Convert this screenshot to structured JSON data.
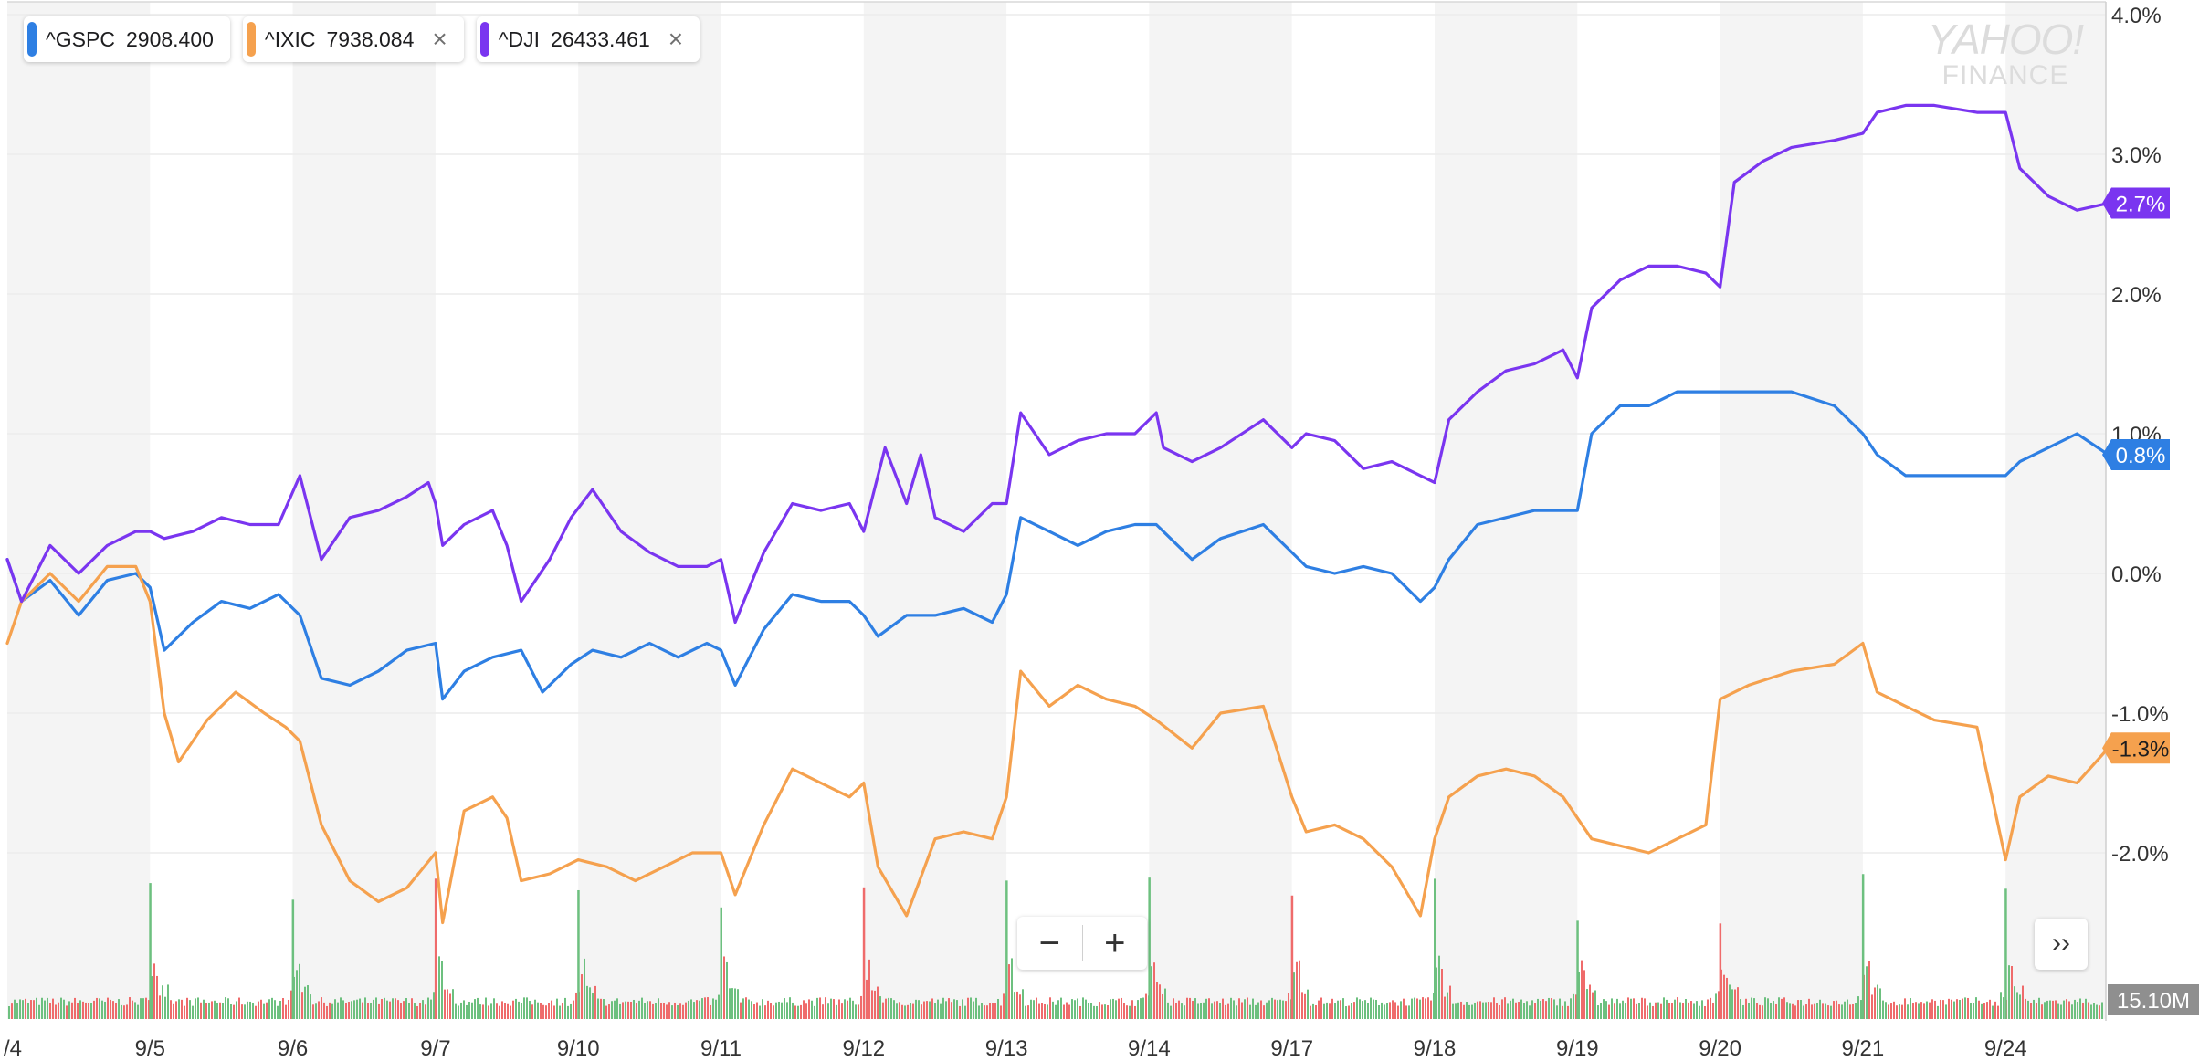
{
  "logo": {
    "line1": "YAHOO!",
    "line2": "FINANCE"
  },
  "legend": [
    {
      "symbol": "^GSPC",
      "value": "2908.400",
      "color": "#2e7fe3",
      "removable": false
    },
    {
      "symbol": "^IXIC",
      "value": "7938.084",
      "color": "#f5a14e",
      "removable": true
    },
    {
      "symbol": "^DJI",
      "value": "26433.461",
      "color": "#7a35f0",
      "removable": true
    }
  ],
  "controls": {
    "zoom_out": "−",
    "zoom_in": "+",
    "more": "››",
    "close": "×"
  },
  "colors": {
    "band": "#f4f4f4",
    "grid": "#ececec",
    "axis_text": "#333333",
    "vol_up": "#6dc07f",
    "vol_down": "#ef6b6b",
    "vol_badge": "#8f8f8f"
  },
  "chart_data": {
    "type": "line",
    "title": "",
    "xlabel": "",
    "ylabel": "",
    "ylim": [
      -3.0,
      4.0
    ],
    "y_ticks": [
      "4.0%",
      "3.0%",
      "2.0%",
      "1.0%",
      "0.0%",
      "-1.0%",
      "-2.0%"
    ],
    "y_tick_values": [
      4,
      3,
      2,
      1,
      0,
      -1,
      -2
    ],
    "x_first_label": "/4",
    "x_labels": [
      "9/5",
      "9/6",
      "9/7",
      "9/10",
      "9/11",
      "9/12",
      "9/13",
      "9/14",
      "9/17",
      "9/18",
      "9/19",
      "9/20",
      "9/21",
      "9/24"
    ],
    "x_day_index": [
      1,
      2,
      3,
      4,
      5,
      6,
      7,
      8,
      9,
      10,
      11,
      12,
      13,
      14
    ],
    "x_range": [
      0,
      14.72
    ],
    "grid": true,
    "volume_label": "15.10M",
    "series": [
      {
        "name": "^GSPC",
        "color": "#2e7fe3",
        "end_label": "0.8%",
        "x": [
          0,
          0.1,
          0.3,
          0.5,
          0.7,
          0.9,
          1.0,
          1.1,
          1.3,
          1.5,
          1.7,
          1.9,
          2.05,
          2.2,
          2.4,
          2.6,
          2.8,
          3.0,
          3.05,
          3.2,
          3.4,
          3.6,
          3.75,
          3.95,
          4.1,
          4.3,
          4.5,
          4.7,
          4.9,
          5.0,
          5.1,
          5.3,
          5.5,
          5.7,
          5.9,
          6.0,
          6.1,
          6.3,
          6.5,
          6.7,
          6.9,
          7.0,
          7.1,
          7.3,
          7.5,
          7.7,
          7.9,
          8.05,
          8.3,
          8.5,
          8.8,
          9.0,
          9.1,
          9.3,
          9.5,
          9.7,
          9.9,
          10.0,
          10.1,
          10.3,
          10.5,
          10.7,
          10.9,
          11.0,
          11.1,
          11.3,
          11.5,
          11.7,
          11.9,
          12.0,
          12.2,
          12.5,
          12.8,
          13.0,
          13.1,
          13.3,
          13.5,
          13.8,
          14.0,
          14.1,
          14.3,
          14.5,
          14.72
        ],
        "y": [
          0.1,
          -0.2,
          -0.05,
          -0.3,
          -0.05,
          0.0,
          -0.1,
          -0.55,
          -0.35,
          -0.2,
          -0.25,
          -0.15,
          -0.3,
          -0.75,
          -0.8,
          -0.7,
          -0.55,
          -0.5,
          -0.9,
          -0.7,
          -0.6,
          -0.55,
          -0.85,
          -0.65,
          -0.55,
          -0.6,
          -0.5,
          -0.6,
          -0.5,
          -0.55,
          -0.8,
          -0.4,
          -0.15,
          -0.2,
          -0.2,
          -0.3,
          -0.45,
          -0.3,
          -0.3,
          -0.25,
          -0.35,
          -0.15,
          0.4,
          0.3,
          0.2,
          0.3,
          0.35,
          0.35,
          0.1,
          0.25,
          0.35,
          0.15,
          0.05,
          0.0,
          0.05,
          0.0,
          -0.2,
          -0.1,
          0.1,
          0.35,
          0.4,
          0.45,
          0.45,
          0.45,
          1.0,
          1.2,
          1.2,
          1.3,
          1.3,
          1.3,
          1.3,
          1.3,
          1.2,
          1.0,
          0.85,
          0.7,
          0.7,
          0.7,
          0.7,
          0.8,
          0.9,
          1.0,
          0.85
        ]
      },
      {
        "name": "^IXIC",
        "color": "#f5a14e",
        "end_label": "-1.3%",
        "x": [
          0,
          0.1,
          0.3,
          0.5,
          0.7,
          0.9,
          1.0,
          1.1,
          1.2,
          1.4,
          1.6,
          1.8,
          1.95,
          2.05,
          2.2,
          2.4,
          2.6,
          2.8,
          3.0,
          3.05,
          3.2,
          3.4,
          3.5,
          3.6,
          3.8,
          4.0,
          4.2,
          4.4,
          4.6,
          4.8,
          5.0,
          5.1,
          5.3,
          5.5,
          5.7,
          5.9,
          6.0,
          6.1,
          6.3,
          6.5,
          6.7,
          6.9,
          7.0,
          7.1,
          7.3,
          7.5,
          7.7,
          7.9,
          8.05,
          8.3,
          8.5,
          8.8,
          9.0,
          9.1,
          9.3,
          9.5,
          9.7,
          9.9,
          10.0,
          10.1,
          10.3,
          10.5,
          10.7,
          10.9,
          11.0,
          11.1,
          11.3,
          11.5,
          11.7,
          11.9,
          12.0,
          12.2,
          12.5,
          12.8,
          13.0,
          13.1,
          13.3,
          13.5,
          13.8,
          14.0,
          14.1,
          14.3,
          14.5,
          14.72
        ],
        "y": [
          -0.5,
          -0.2,
          0.0,
          -0.2,
          0.05,
          0.05,
          -0.2,
          -1.0,
          -1.35,
          -1.05,
          -0.85,
          -1.0,
          -1.1,
          -1.2,
          -1.8,
          -2.2,
          -2.35,
          -2.25,
          -2.0,
          -2.5,
          -1.7,
          -1.6,
          -1.75,
          -2.2,
          -2.15,
          -2.05,
          -2.1,
          -2.2,
          -2.1,
          -2.0,
          -2.0,
          -2.3,
          -1.8,
          -1.4,
          -1.5,
          -1.6,
          -1.5,
          -2.1,
          -2.45,
          -1.9,
          -1.85,
          -1.9,
          -1.6,
          -0.7,
          -0.95,
          -0.8,
          -0.9,
          -0.95,
          -1.05,
          -1.25,
          -1.0,
          -0.95,
          -1.6,
          -1.85,
          -1.8,
          -1.9,
          -2.1,
          -2.45,
          -1.9,
          -1.6,
          -1.45,
          -1.4,
          -1.45,
          -1.6,
          -1.75,
          -1.9,
          -1.95,
          -2.0,
          -1.9,
          -1.8,
          -0.9,
          -0.8,
          -0.7,
          -0.65,
          -0.5,
          -0.85,
          -0.95,
          -1.05,
          -1.1,
          -2.05,
          -1.6,
          -1.45,
          -1.5,
          -1.25
        ]
      },
      {
        "name": "^DJI",
        "color": "#7a35f0",
        "end_label": "2.7%",
        "x": [
          0,
          0.1,
          0.3,
          0.5,
          0.7,
          0.9,
          1.0,
          1.1,
          1.3,
          1.5,
          1.7,
          1.9,
          2.05,
          2.2,
          2.4,
          2.6,
          2.8,
          2.95,
          3.0,
          3.05,
          3.2,
          3.4,
          3.5,
          3.6,
          3.8,
          3.95,
          4.1,
          4.3,
          4.5,
          4.7,
          4.9,
          5.0,
          5.1,
          5.3,
          5.5,
          5.7,
          5.9,
          6.0,
          6.15,
          6.3,
          6.4,
          6.5,
          6.7,
          6.9,
          7.0,
          7.1,
          7.3,
          7.5,
          7.7,
          7.9,
          8.05,
          8.1,
          8.3,
          8.5,
          8.8,
          9.0,
          9.1,
          9.3,
          9.5,
          9.7,
          9.9,
          10.0,
          10.1,
          10.3,
          10.5,
          10.7,
          10.9,
          11.0,
          11.1,
          11.3,
          11.5,
          11.7,
          11.9,
          12.0,
          12.1,
          12.3,
          12.5,
          12.8,
          13.0,
          13.1,
          13.3,
          13.5,
          13.8,
          14.0,
          14.1,
          14.3,
          14.5,
          14.72
        ],
        "y": [
          0.1,
          -0.2,
          0.2,
          0.0,
          0.2,
          0.3,
          0.3,
          0.25,
          0.3,
          0.4,
          0.35,
          0.35,
          0.7,
          0.1,
          0.4,
          0.45,
          0.55,
          0.65,
          0.5,
          0.2,
          0.35,
          0.45,
          0.2,
          -0.2,
          0.1,
          0.4,
          0.6,
          0.3,
          0.15,
          0.05,
          0.05,
          0.1,
          -0.35,
          0.15,
          0.5,
          0.45,
          0.5,
          0.3,
          0.9,
          0.5,
          0.85,
          0.4,
          0.3,
          0.5,
          0.5,
          1.15,
          0.85,
          0.95,
          1.0,
          1.0,
          1.15,
          0.9,
          0.8,
          0.9,
          1.1,
          0.9,
          1.0,
          0.95,
          0.75,
          0.8,
          0.7,
          0.65,
          1.1,
          1.3,
          1.45,
          1.5,
          1.6,
          1.4,
          1.9,
          2.1,
          2.2,
          2.2,
          2.15,
          2.05,
          2.8,
          2.95,
          3.05,
          3.1,
          3.15,
          3.3,
          3.35,
          3.35,
          3.3,
          3.3,
          2.9,
          2.7,
          2.6,
          2.65
        ]
      }
    ]
  }
}
